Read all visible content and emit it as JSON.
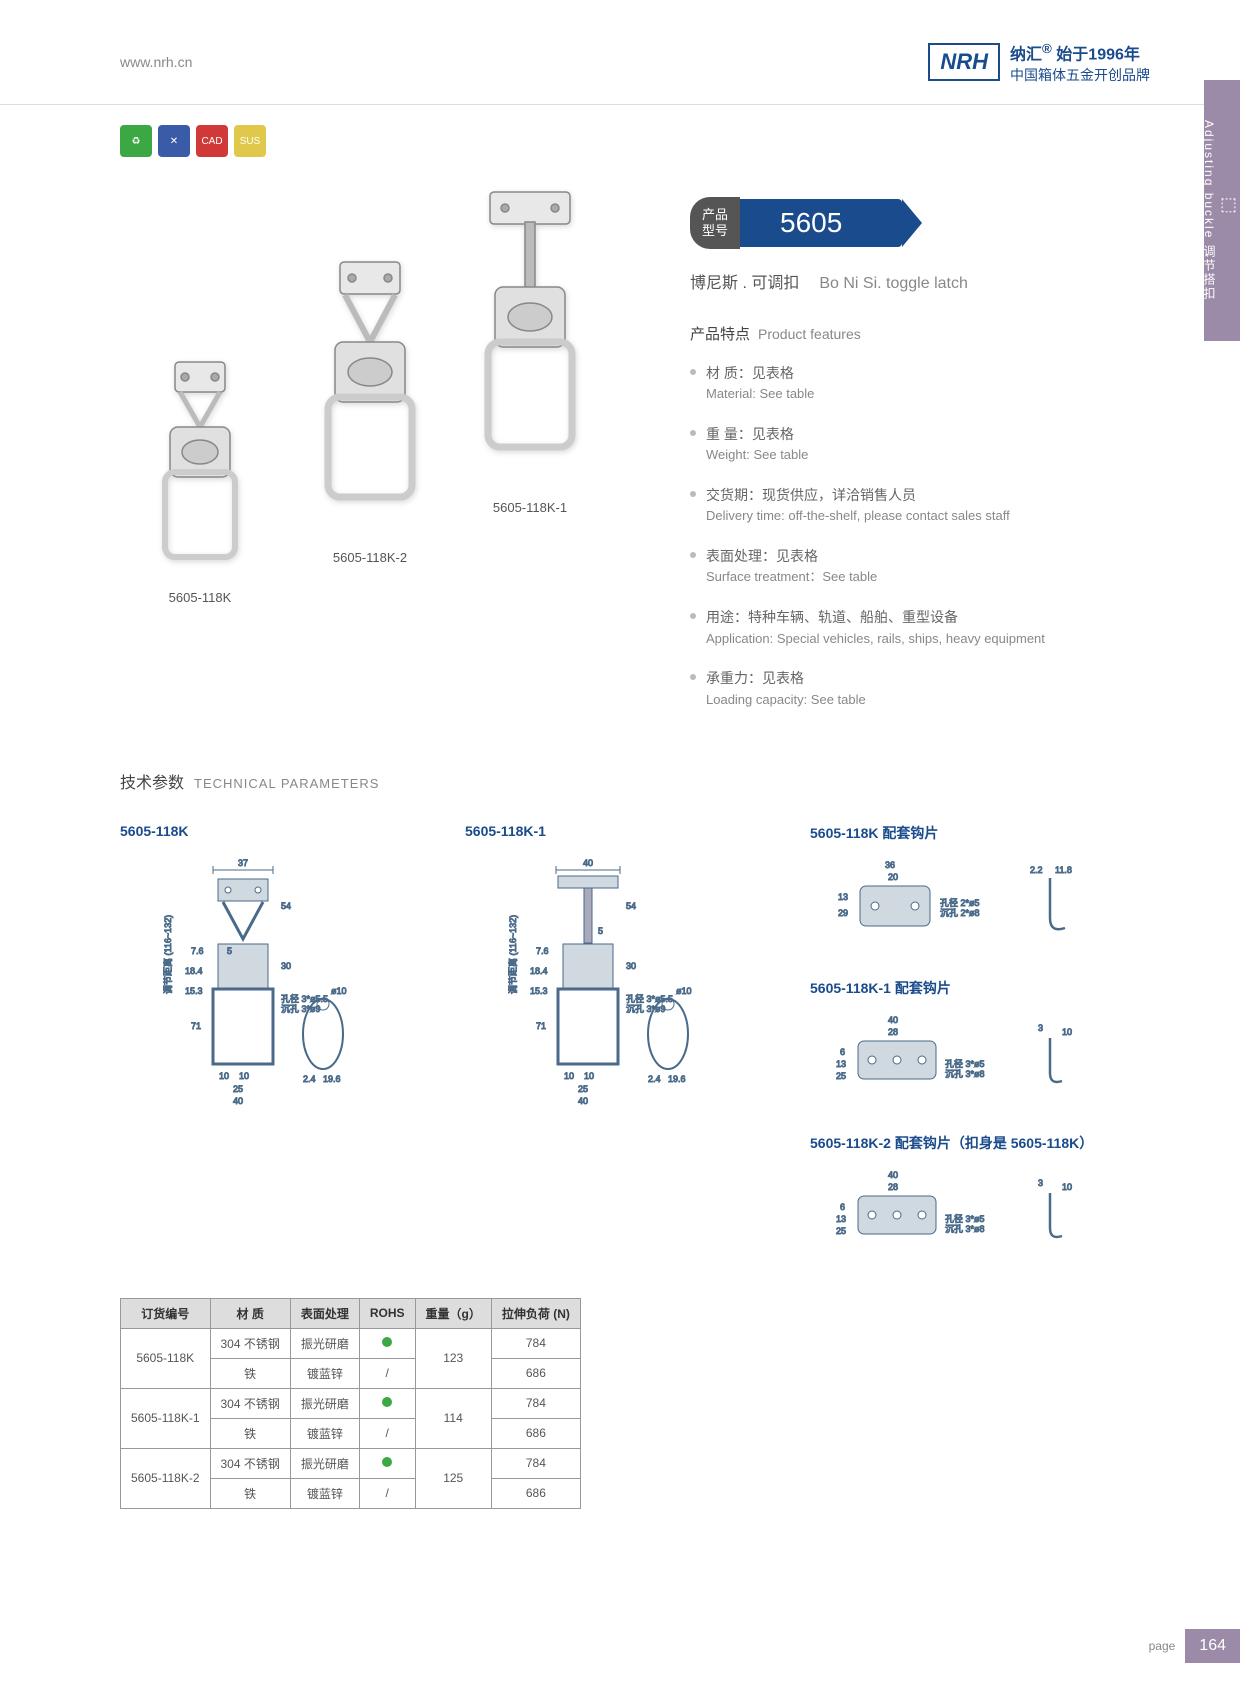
{
  "header": {
    "url": "www.nrh.cn",
    "logo": "NRH",
    "brand_cn": "纳汇",
    "since": "始于1996年",
    "tagline": "中国箱体五金开创品牌"
  },
  "side_tab": {
    "cn": "调节搭扣",
    "en": "Adjusting buckle"
  },
  "model": {
    "label": "产品\n型号",
    "number": "5605"
  },
  "product_name": {
    "cn": "博尼斯 . 可调扣",
    "en": "Bo Ni Si. toggle latch"
  },
  "image_labels": [
    "5605-118K",
    "5605-118K-2",
    "5605-118K-1"
  ],
  "features_title": {
    "cn": "产品特点",
    "en": "Product features"
  },
  "features": [
    {
      "cn": "材 质：见表格",
      "en": "Material: See table"
    },
    {
      "cn": "重 量：见表格",
      "en": "Weight: See table"
    },
    {
      "cn": "交货期：现货供应，详洽销售人员",
      "en": "Delivery time: off-the-shelf, please contact sales staff"
    },
    {
      "cn": "表面处理：见表格",
      "en": "Surface treatment：See table"
    },
    {
      "cn": "用途：特种车辆、轨道、船舶、重型设备",
      "en": "Application: Special vehicles, rails, ships, heavy equipment"
    },
    {
      "cn": "承重力：见表格",
      "en": "Loading capacity: See table"
    }
  ],
  "tech_title": {
    "cn": "技术参数",
    "en": "TECHNICAL PARAMETERS"
  },
  "diagrams": {
    "d1": {
      "title": "5605-118K"
    },
    "d2": {
      "title": "5605-118K-1"
    },
    "d3": {
      "title": "5605-118K 配套钩片"
    },
    "d4": {
      "title": "5605-118K-1 配套钩片"
    },
    "d5": {
      "title": "5605-118K-2 配套钩片（扣身是 5605-118K）"
    }
  },
  "dim_labels": {
    "range": "调节距离 (116~132)",
    "hole1": "孔径 3*ø5.5",
    "hole1b": "沉孔 3*ø9",
    "hole2": "孔径 2*ø5",
    "hole2b": "沉孔 2*ø8",
    "hole3": "孔径 3*ø5",
    "hole3b": "沉孔 3*ø8"
  },
  "table": {
    "headers": [
      "订货编号",
      "材 质",
      "表面处理",
      "ROHS",
      "重量（g）",
      "拉伸负荷 (N)"
    ],
    "rows": [
      [
        "5605-118K",
        "304 不锈钢",
        "振光研磨",
        "dot",
        "123",
        "784"
      ],
      [
        "",
        "铁",
        "镀蓝锌",
        "/",
        "",
        "686"
      ],
      [
        "5605-118K-1",
        "304 不锈钢",
        "振光研磨",
        "dot",
        "114",
        "784"
      ],
      [
        "",
        "铁",
        "镀蓝锌",
        "/",
        "",
        "686"
      ],
      [
        "5605-118K-2",
        "304 不锈钢",
        "振光研磨",
        "dot",
        "125",
        "784"
      ],
      [
        "",
        "铁",
        "镀蓝锌",
        "/",
        "",
        "686"
      ]
    ]
  },
  "page": {
    "label": "page",
    "num": "164"
  }
}
